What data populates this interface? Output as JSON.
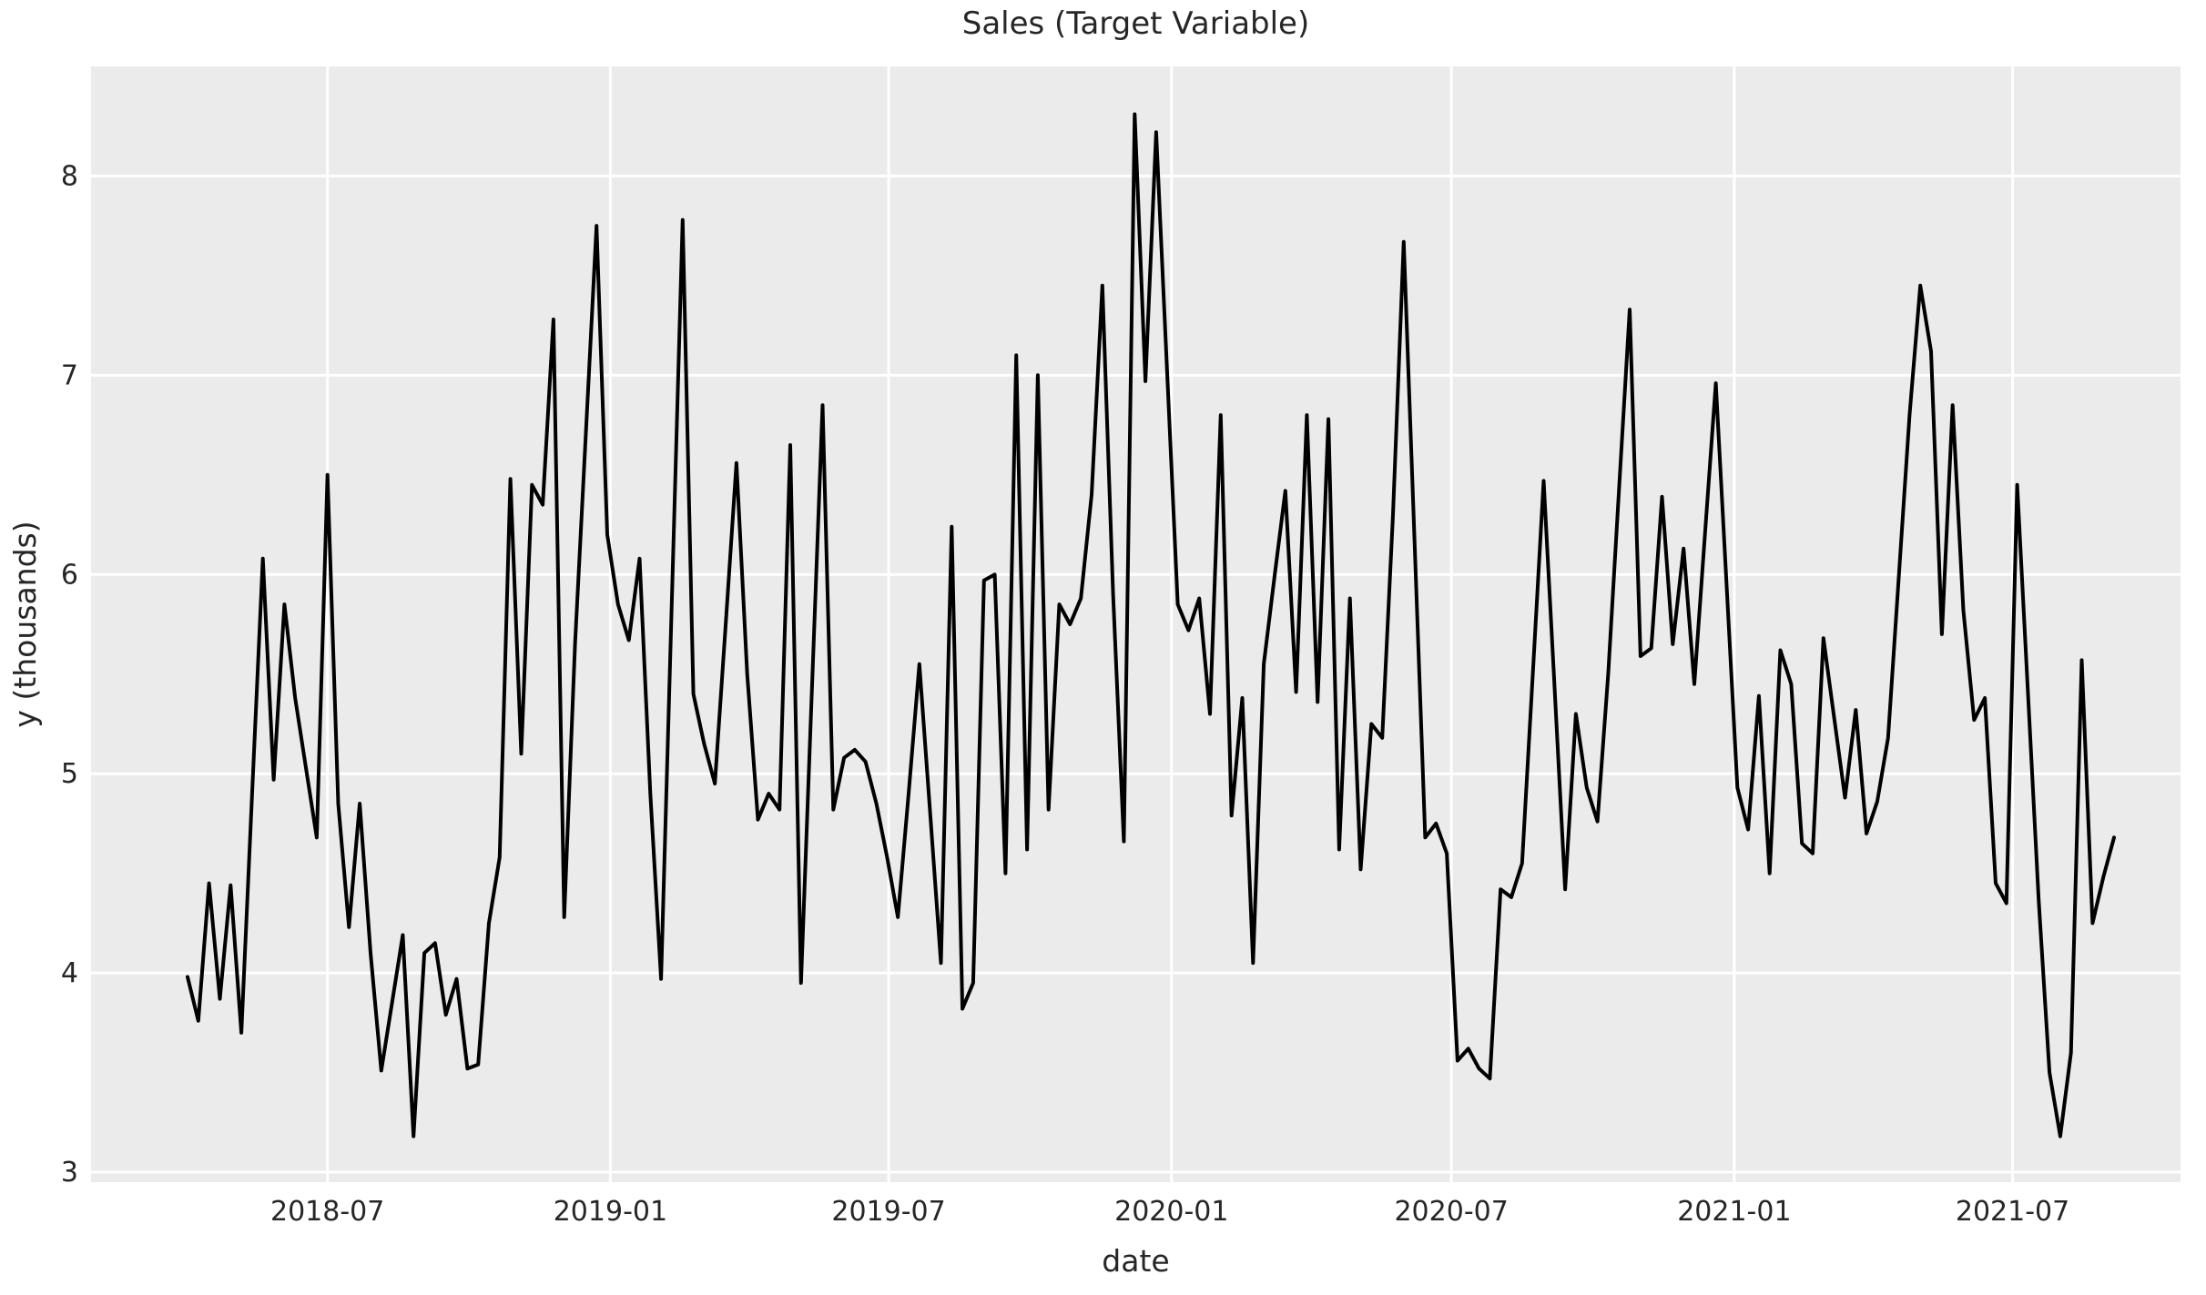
{
  "chart": {
    "title": "Sales (Target Variable)",
    "xlabel": "date",
    "ylabel": "y (thousands)"
  },
  "chart_data": {
    "type": "line",
    "title": "Sales (Target Variable)",
    "xlabel": "date",
    "ylabel": "y (thousands)",
    "legend": "none",
    "grid": true,
    "plot_bg_color": "#ebebeb",
    "grid_color": "#ffffff",
    "line_color": "#000000",
    "text_color": "#262626",
    "cadence": "weekly",
    "x_start": "2018-04-01",
    "x_end": "2021-09-05",
    "x_tick_labels": [
      "2018-07",
      "2019-01",
      "2019-07",
      "2020-01",
      "2020-07",
      "2021-01",
      "2021-07"
    ],
    "y_tick_labels": [
      "3",
      "4",
      "5",
      "6",
      "7",
      "8"
    ],
    "y_ticks": [
      3,
      4,
      5,
      6,
      7,
      8
    ],
    "ylim": [
      2.95,
      8.55
    ],
    "values": [
      3.98,
      3.76,
      4.45,
      3.87,
      4.44,
      3.7,
      4.9,
      6.08,
      4.97,
      5.85,
      5.38,
      5.03,
      4.68,
      6.5,
      4.85,
      4.23,
      4.85,
      4.1,
      3.51,
      3.85,
      4.19,
      3.18,
      4.1,
      4.15,
      3.79,
      3.97,
      3.52,
      3.54,
      4.25,
      4.58,
      6.48,
      5.1,
      6.45,
      6.35,
      7.28,
      4.28,
      5.65,
      6.7,
      7.75,
      6.2,
      5.85,
      5.67,
      6.08,
      4.9,
      3.97,
      5.88,
      7.78,
      5.4,
      5.15,
      4.95,
      5.75,
      6.56,
      5.5,
      4.77,
      4.9,
      4.82,
      6.65,
      3.95,
      5.4,
      6.85,
      4.82,
      5.08,
      5.12,
      5.06,
      4.85,
      4.58,
      4.28,
      4.9,
      5.55,
      4.8,
      4.05,
      6.24,
      3.82,
      3.95,
      5.97,
      6.0,
      4.5,
      7.1,
      4.62,
      7.0,
      4.82,
      5.85,
      5.75,
      5.88,
      6.4,
      7.45,
      5.9,
      4.66,
      8.31,
      6.97,
      8.22,
      7.04,
      5.85,
      5.72,
      5.88,
      5.3,
      6.8,
      4.79,
      5.38,
      4.05,
      5.55,
      5.99,
      6.42,
      5.41,
      6.8,
      5.36,
      6.78,
      4.62,
      5.88,
      4.52,
      5.25,
      5.18,
      6.3,
      7.67,
      6.18,
      4.68,
      4.75,
      4.6,
      3.56,
      3.62,
      3.52,
      3.47,
      4.42,
      4.38,
      4.55,
      5.51,
      6.47,
      5.45,
      4.42,
      5.3,
      4.93,
      4.76,
      5.5,
      6.42,
      7.33,
      5.59,
      5.63,
      6.39,
      5.65,
      6.13,
      5.45,
      6.21,
      6.96,
      5.95,
      4.93,
      4.72,
      5.39,
      4.5,
      5.62,
      5.45,
      4.65,
      4.6,
      5.68,
      5.28,
      4.88,
      5.32,
      4.7,
      4.86,
      5.18,
      5.99,
      6.8,
      7.45,
      7.12,
      5.7,
      6.85,
      5.82,
      5.27,
      5.38,
      4.45,
      4.35,
      6.45,
      5.41,
      4.36,
      3.5,
      3.18,
      3.6,
      5.57,
      4.25,
      4.48,
      4.68
    ]
  }
}
